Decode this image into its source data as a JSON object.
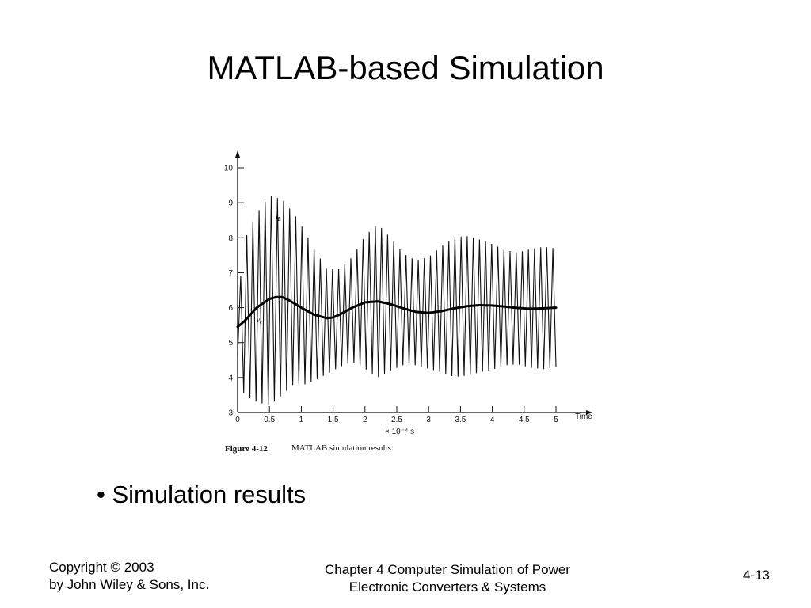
{
  "slide": {
    "title": "MATLAB-based Simulation",
    "bullet": "• Simulation results",
    "footer": {
      "copyright_line1": "Copyright © 2003",
      "copyright_line2": "by John Wiley & Sons, Inc.",
      "chapter_line1": "Chapter 4 Computer Simulation of Power",
      "chapter_line2": "Electronic Converters & Systems",
      "page_number": "4-13"
    }
  },
  "chart_data": {
    "type": "line",
    "title": "",
    "caption_number": "Figure 4-12",
    "caption_text": "MATLAB simulation results.",
    "xlabel": "Time",
    "x_multiplier": "× 10⁻⁴ s",
    "ylabel": "",
    "xlim": [
      0,
      5
    ],
    "ylim": [
      3,
      10
    ],
    "x_ticks": [
      "0",
      "0.5",
      "1",
      "1.5",
      "2",
      "2.5",
      "3",
      "3.5",
      "4",
      "4.5",
      "5"
    ],
    "y_ticks": [
      "3",
      "4",
      "5",
      "6",
      "7",
      "8",
      "9",
      "10"
    ],
    "grid": false,
    "series": [
      {
        "name": "iL",
        "style": "thin-ripple",
        "description_points_x": [
          0,
          0.1,
          0.3,
          0.5,
          0.7,
          0.9,
          1.05,
          1.2,
          1.4,
          1.6,
          1.8,
          2.0,
          2.2,
          2.4,
          2.6,
          2.8,
          3.0,
          3.2,
          3.4,
          3.6,
          3.8,
          4.0,
          4.2,
          4.4,
          4.6,
          4.8,
          5.0
        ],
        "mean": [
          5.5,
          5.7,
          6.0,
          6.2,
          6.3,
          6.25,
          6.0,
          5.8,
          5.6,
          5.7,
          5.95,
          6.15,
          6.2,
          6.1,
          5.95,
          5.85,
          5.85,
          5.95,
          6.02,
          6.05,
          6.05,
          6.02,
          6.0,
          5.98,
          5.98,
          5.99,
          6.0
        ],
        "ripple_half_amplitude": [
          0.5,
          2.2,
          2.7,
          3.0,
          2.8,
          2.4,
          2.2,
          1.9,
          1.5,
          1.4,
          1.5,
          1.9,
          2.2,
          1.9,
          1.6,
          1.5,
          1.6,
          1.8,
          2.0,
          2.0,
          1.9,
          1.8,
          1.65,
          1.6,
          1.7,
          1.75,
          1.7
        ],
        "ripple_periods": 52
      },
      {
        "name": "vc",
        "style": "thick",
        "x": [
          0,
          0.1,
          0.3,
          0.5,
          0.6,
          0.7,
          0.8,
          1.0,
          1.2,
          1.4,
          1.5,
          1.6,
          1.8,
          2.0,
          2.2,
          2.4,
          2.6,
          2.8,
          3.0,
          3.2,
          3.4,
          3.6,
          3.8,
          4.0,
          4.2,
          4.4,
          4.6,
          4.8,
          5.0
        ],
        "values": [
          5.45,
          5.6,
          6.0,
          6.25,
          6.3,
          6.3,
          6.22,
          6.0,
          5.8,
          5.7,
          5.72,
          5.8,
          6.0,
          6.15,
          6.18,
          6.1,
          5.98,
          5.88,
          5.85,
          5.9,
          5.98,
          6.04,
          6.07,
          6.06,
          6.03,
          5.99,
          5.97,
          5.98,
          6.0
        ]
      }
    ]
  }
}
